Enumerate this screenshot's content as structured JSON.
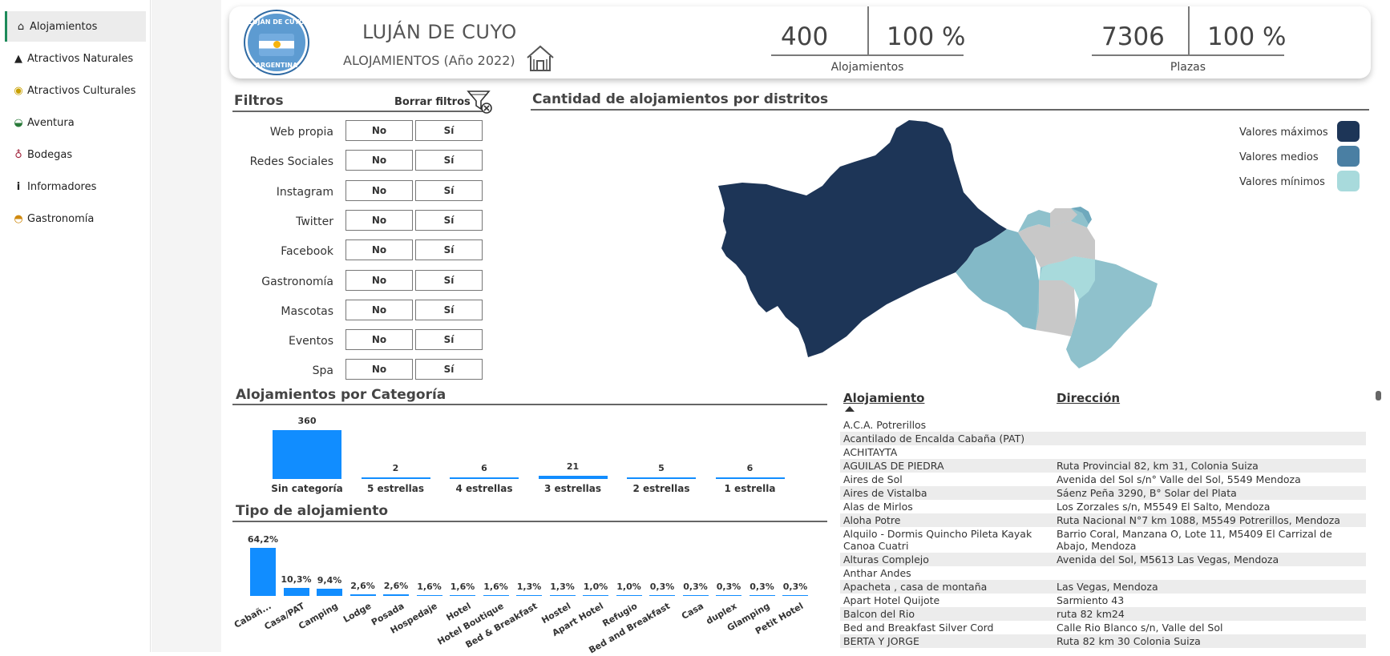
{
  "sidebar": {
    "items": [
      {
        "label": "Alojamientos",
        "icon": "house-icon",
        "active": true
      },
      {
        "label": "Atractivos Naturales",
        "icon": "mountain-icon"
      },
      {
        "label": "Atractivos Culturales",
        "icon": "theater-masks-icon"
      },
      {
        "label": "Aventura",
        "icon": "diving-mask-icon"
      },
      {
        "label": "Bodegas",
        "icon": "wine-glass-icon"
      },
      {
        "label": "Informadores",
        "icon": "info-icon"
      },
      {
        "label": "Gastronomía",
        "icon": "food-bowl-icon"
      }
    ]
  },
  "header": {
    "logo_text_top": "LUJÁN DE CUYO",
    "logo_text_bottom": "ARGENTINA",
    "title": "LUJÁN DE CUYO",
    "subtitle": "ALOJAMIENTOS (Año 2022)",
    "kpis": [
      {
        "value": "400",
        "percent": "100 %",
        "label": "Alojamientos"
      },
      {
        "value": "7306",
        "percent": "100 %",
        "label": "Plazas"
      }
    ]
  },
  "filters": {
    "title": "Filtros",
    "clear_label": "Borrar filtros",
    "no_label": "No",
    "yes_label": "Sí",
    "items": [
      "Web propia",
      "Redes Sociales",
      "Instagram",
      "Twitter",
      "Facebook",
      "Gastronomía",
      "Mascotas",
      "Eventos",
      "Spa"
    ]
  },
  "map": {
    "title": "Cantidad de alojamientos por distritos",
    "legend": [
      {
        "label": "Valores máximos",
        "color": "#1d3557"
      },
      {
        "label": "Valores medios",
        "color": "#4a7fa3"
      },
      {
        "label": "Valores mínimos",
        "color": "#a8dadc"
      }
    ]
  },
  "category_chart": {
    "title": "Alojamientos por Categoría",
    "chart_data": {
      "type": "bar",
      "categories": [
        "Sin categoría",
        "5 estrellas",
        "4 estrellas",
        "3 estrellas",
        "2 estrellas",
        "1 estrella"
      ],
      "values": [
        360,
        2,
        6,
        21,
        5,
        6
      ],
      "labels": [
        "360",
        "2",
        "6",
        "21",
        "5",
        "6"
      ],
      "ylim": [
        0,
        360
      ]
    }
  },
  "type_chart": {
    "title": "Tipo de alojamiento",
    "chart_data": {
      "type": "bar",
      "categories": [
        "Cabañ...",
        "Casa/PAT",
        "Camping",
        "Lodge",
        "Posada",
        "Hospedaje",
        "Hotel",
        "Hotel Boutique",
        "Bed & Breakfast",
        "Hostel",
        "Apart Hotel",
        "Refugio",
        "Bed and Breakfast",
        "Casa",
        "duplex",
        "Glamping",
        "Petit Hotel"
      ],
      "values": [
        64.2,
        10.3,
        9.4,
        2.6,
        2.6,
        1.6,
        1.6,
        1.6,
        1.3,
        1.3,
        1.0,
        1.0,
        0.3,
        0.3,
        0.3,
        0.3,
        0.3
      ],
      "labels": [
        "64,2%",
        "10,3%",
        "9,4%",
        "2,6%",
        "2,6%",
        "1,6%",
        "1,6%",
        "1,6%",
        "1,3%",
        "1,3%",
        "1,0%",
        "1,0%",
        "0,3%",
        "0,3%",
        "0,3%",
        "0,3%",
        "0,3%"
      ],
      "ylim": [
        0,
        64.2
      ]
    }
  },
  "table": {
    "headers": [
      "Alojamiento",
      "Dirección"
    ],
    "rows": [
      [
        "A.C.A. Potrerillos",
        ""
      ],
      [
        "Acantilado de Encalda Cabaña (PAT)",
        ""
      ],
      [
        "ACHITAYTA",
        ""
      ],
      [
        "AGUILAS DE PIEDRA",
        "Ruta Provincial 82, km 31, Colonia Suiza"
      ],
      [
        "Aires de Sol",
        "Avenida del Sol s/n° Valle del Sol, 5549 Mendoza"
      ],
      [
        "Aires de Vistalba",
        "Sáenz Peña 3290, B° Solar del Plata"
      ],
      [
        "Alas de Mirlos",
        "Los Zorzales s/n, M5549 El Salto, Mendoza"
      ],
      [
        "Aloha Potre",
        "Ruta Nacional N°7 km 1088, M5549 Potrerillos, Mendoza"
      ],
      [
        "Alquilo - Dormis Quincho Pileta Kayak Canoa Cuatri",
        "Barrio Coral, Manzana O, Lote 11, M5409 El Carrizal de Abajo, Mendoza"
      ],
      [
        "Alturas Complejo",
        "Avenida del Sol, M5613 Las Vegas, Mendoza"
      ],
      [
        "Anthar Andes",
        ""
      ],
      [
        "Apacheta , casa de montaña",
        "Las Vegas, Mendoza"
      ],
      [
        "Apart Hotel Quijote",
        "Sarmiento 43"
      ],
      [
        "Balcon del Rio",
        "ruta 82 km24"
      ],
      [
        "Bed and Breakfast Silver Cord",
        "Calle Rio Blanco s/n, Valle del Sol"
      ],
      [
        "BERTA Y JORGE",
        "Ruta 82 km 30 Colonia Suiza"
      ]
    ]
  }
}
